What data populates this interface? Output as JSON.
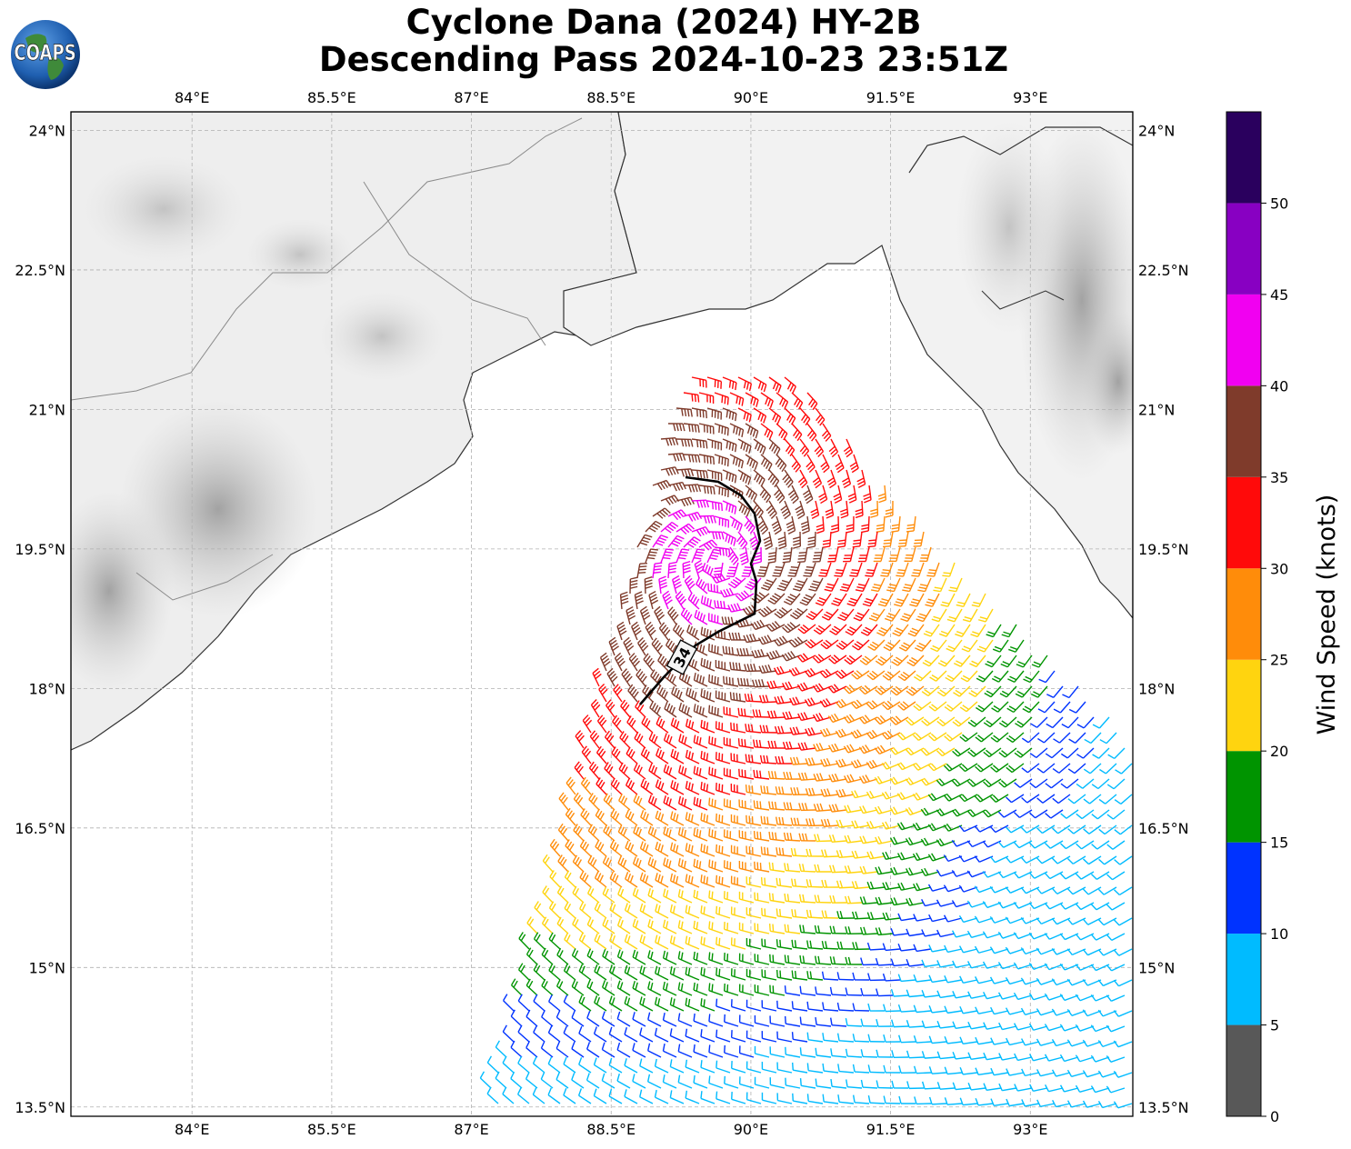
{
  "title": {
    "line1": "Cyclone Dana (2024) HY-2B",
    "line2": "Descending Pass 2024-10-23 23:51Z"
  },
  "logo": {
    "text": "COAPS"
  },
  "map": {
    "lon_labels": [
      "84°E",
      "85.5°E",
      "87°E",
      "88.5°E",
      "90°E",
      "91.5°E",
      "93°E"
    ],
    "lat_labels": [
      "24°N",
      "22.5°N",
      "21°N",
      "19.5°N",
      "18°N",
      "16.5°N",
      "15°N",
      "13.5°N"
    ],
    "contour_label": "34",
    "extent": {
      "lon": [
        82.7,
        94.1
      ],
      "lat": [
        13.4,
        24.2
      ]
    }
  },
  "colorbar": {
    "label": "Wind Speed (knots)",
    "ticks": [
      "0",
      "5",
      "10",
      "15",
      "20",
      "25",
      "30",
      "35",
      "40",
      "45",
      "50"
    ],
    "bins": [
      {
        "min": 0,
        "max": 5,
        "color": "#585858"
      },
      {
        "min": 5,
        "max": 10,
        "color": "#00bbff"
      },
      {
        "min": 10,
        "max": 15,
        "color": "#0033ff"
      },
      {
        "min": 15,
        "max": 20,
        "color": "#009400"
      },
      {
        "min": 20,
        "max": 25,
        "color": "#ffd40f"
      },
      {
        "min": 25,
        "max": 30,
        "color": "#ff8c0a"
      },
      {
        "min": 30,
        "max": 35,
        "color": "#ff0a0a"
      },
      {
        "min": 35,
        "max": 40,
        "color": "#7f3b2b"
      },
      {
        "min": 40,
        "max": 45,
        "color": "#f100f1"
      },
      {
        "min": 45,
        "max": 50,
        "color": "#8800c2"
      },
      {
        "min": 50,
        "max": 55,
        "color": "#2a005e"
      }
    ]
  }
}
